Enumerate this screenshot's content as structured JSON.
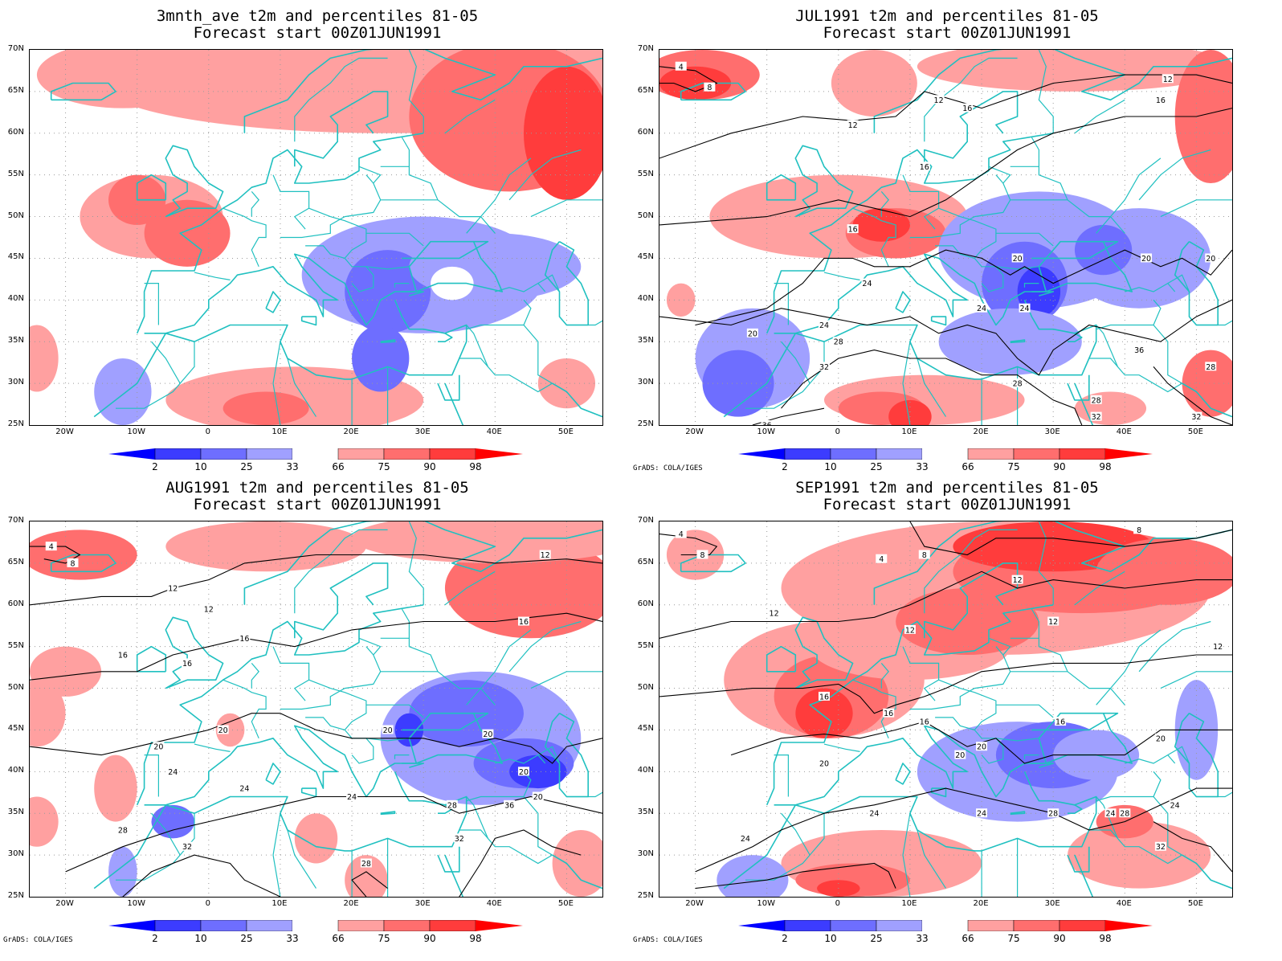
{
  "panels": [
    {
      "title": "3mnth_ave t2m and percentiles 81-05",
      "subtitle": "Forecast start 00Z01JUN1991",
      "credit": ""
    },
    {
      "title": "JUL1991 t2m and percentiles 81-05",
      "subtitle": "Forecast start 00Z01JUN1991",
      "credit": "GrADS: COLA/IGES"
    },
    {
      "title": "AUG1991 t2m and percentiles 81-05",
      "subtitle": "Forecast start 00Z01JUN1991",
      "credit": "GrADS: COLA/IGES"
    },
    {
      "title": "SEP1991 t2m and percentiles 81-05",
      "subtitle": "Forecast start 00Z01JUN1991",
      "credit": "GrADS: COLA/IGES"
    }
  ],
  "lat_labels": [
    "70N",
    "65N",
    "60N",
    "55N",
    "50N",
    "45N",
    "40N",
    "35N",
    "30N",
    "25N"
  ],
  "lon_labels": [
    "20W",
    "10W",
    "0",
    "10E",
    "20E",
    "30E",
    "40E",
    "50E"
  ],
  "colorbar": {
    "labels": [
      "2",
      "10",
      "25",
      "33",
      "66",
      "75",
      "90",
      "98"
    ],
    "colors": [
      "#0000ff",
      "#3c3cff",
      "#6e6eff",
      "#a0a0ff",
      "#ffffff",
      "#ffa0a0",
      "#ff6e6e",
      "#ff3c3c",
      "#ff0000"
    ]
  },
  "colors": {
    "coastline": "#20c0c0",
    "contour": "#000000",
    "grid": "#9a9a9a"
  },
  "contour_labels": [
    [],
    [
      "4",
      "8",
      "12",
      "12",
      "12",
      "16",
      "16",
      "16",
      "16",
      "20",
      "20",
      "20",
      "20",
      "24",
      "24",
      "24",
      "24",
      "28",
      "28",
      "28",
      "32",
      "32",
      "32",
      "36",
      "36",
      "28"
    ],
    [
      "4",
      "8",
      "12",
      "12",
      "12",
      "16",
      "16",
      "16",
      "16",
      "20",
      "20",
      "20",
      "20",
      "20",
      "24",
      "24",
      "24",
      "28",
      "28",
      "28",
      "32",
      "32",
      "36",
      "20"
    ],
    [
      "4",
      "8",
      "8",
      "4",
      "8",
      "12",
      "12",
      "12",
      "12",
      "12",
      "16",
      "16",
      "16",
      "16",
      "20",
      "20",
      "20",
      "20",
      "24",
      "24",
      "24",
      "24",
      "24",
      "28",
      "28",
      "32"
    ]
  ]
}
